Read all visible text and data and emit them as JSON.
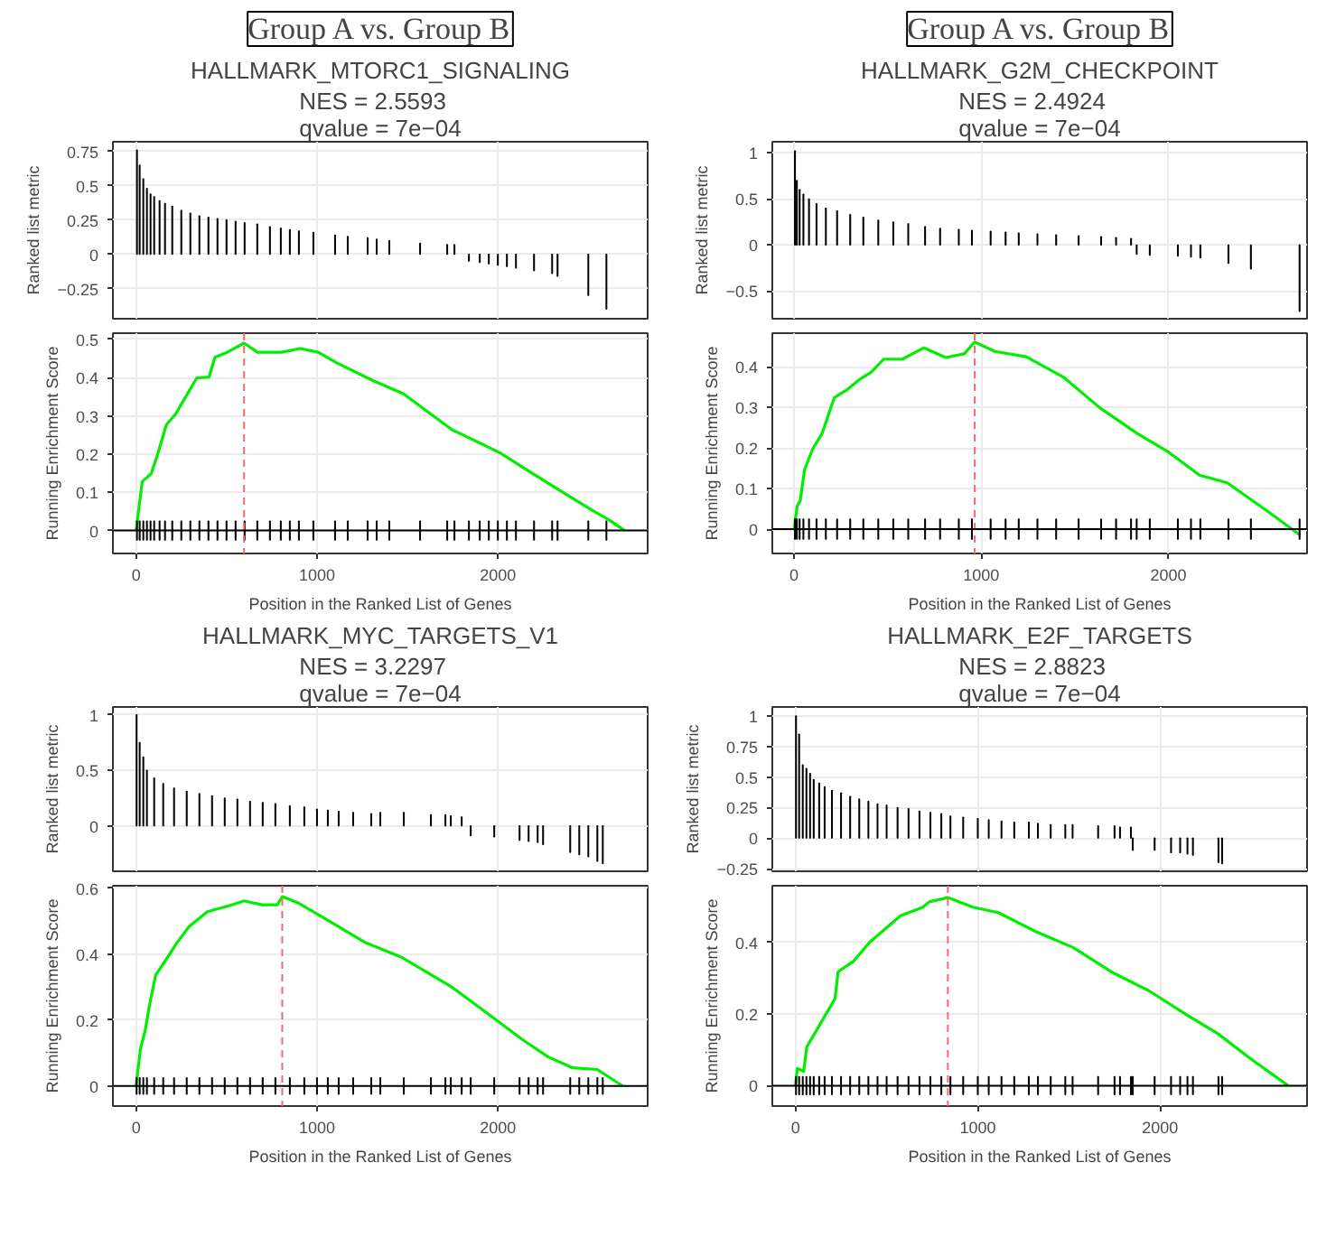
{
  "chart_data": [
    {
      "type": "bar",
      "annotations": [
        "Group A vs. Group B"
      ],
      "title": "HALLMARK_MTORC1_SIGNALING",
      "subtitle": "NES = 2.5593\nqvalue = 7e−04",
      "ylabel": "Ranked list metric",
      "color": "#000000",
      "xlim": [
        -128,
        2828
      ],
      "xticks": [
        0,
        1000,
        2000
      ],
      "ylim": [
        -0.47,
        0.82
      ],
      "yticks": [
        -0.25,
        0.0,
        0.25,
        0.5,
        0.75
      ],
      "tick_labels": "y",
      "grid": true,
      "x": [
        5,
        20,
        40,
        60,
        80,
        100,
        130,
        160,
        200,
        250,
        300,
        350,
        400,
        450,
        500,
        550,
        600,
        670,
        740,
        800,
        850,
        900,
        980,
        1100,
        1170,
        1280,
        1330,
        1400,
        1570,
        1720,
        1760,
        1840,
        1900,
        1950,
        2000,
        2050,
        2100,
        2200,
        2300,
        2330,
        2500,
        2600
      ],
      "values": [
        0.76,
        0.65,
        0.55,
        0.48,
        0.44,
        0.42,
        0.39,
        0.37,
        0.35,
        0.32,
        0.3,
        0.28,
        0.27,
        0.26,
        0.25,
        0.24,
        0.23,
        0.22,
        0.2,
        0.19,
        0.18,
        0.17,
        0.16,
        0.14,
        0.13,
        0.12,
        0.11,
        0.1,
        0.08,
        0.07,
        0.07,
        -0.05,
        -0.06,
        -0.07,
        -0.08,
        -0.09,
        -0.1,
        -0.12,
        -0.14,
        -0.16,
        -0.3,
        -0.4
      ]
    },
    {
      "type": "line",
      "xlabel": "Position in the Ranked List of Genes",
      "ylabel": "Running Enrichment Score",
      "xlim": [
        -128,
        2828
      ],
      "xticks": [
        0,
        1000,
        2000
      ],
      "ylim": [
        -0.06,
        0.516
      ],
      "yticks": [
        0.0,
        0.1,
        0.2,
        0.3,
        0.4,
        0.5
      ],
      "grid": true,
      "ref_lines": [
        {
          "axis": "x",
          "value": 597,
          "color": "#ff6666",
          "line_style": "dashed"
        },
        {
          "axis": "y",
          "value": 0,
          "color": "#000000",
          "line_style": "solid"
        }
      ],
      "series": [
        {
          "type": "line",
          "color": "#00ee00",
          "x": [
            0,
            34,
            84,
            117,
            168,
            218,
            285,
            336,
            403,
            436,
            503,
            597,
            671,
            805,
            906,
            1007,
            1107,
            1309,
            1477,
            1745,
            2013,
            2148,
            2332,
            2517,
            2617,
            2701
          ],
          "values": [
            0,
            0.128,
            0.149,
            0.196,
            0.277,
            0.304,
            0.358,
            0.399,
            0.401,
            0.453,
            0.466,
            0.49,
            0.466,
            0.466,
            0.476,
            0.466,
            0.439,
            0.392,
            0.358,
            0.264,
            0.203,
            0.162,
            0.108,
            0.054,
            0.027,
            0.0
          ]
        },
        {
          "type": "bar",
          "color": "#000000",
          "x": [
            5,
            20,
            40,
            60,
            80,
            100,
            130,
            160,
            200,
            250,
            300,
            350,
            400,
            450,
            500,
            550,
            600,
            670,
            740,
            800,
            850,
            900,
            980,
            1100,
            1170,
            1280,
            1330,
            1400,
            1570,
            1720,
            1760,
            1840,
            1900,
            1950,
            2000,
            2050,
            2100,
            2200,
            2300,
            2330,
            2500,
            2600
          ],
          "base": [
            -0.025,
            -0.025,
            -0.025,
            -0.025,
            -0.025,
            -0.025,
            -0.025,
            -0.025,
            -0.025,
            -0.025,
            -0.025,
            -0.025,
            -0.025,
            -0.025,
            -0.025,
            -0.025,
            -0.025,
            -0.025,
            -0.025,
            -0.025,
            -0.025,
            -0.025,
            -0.025,
            -0.025,
            -0.025,
            -0.025,
            -0.025,
            -0.025,
            -0.025,
            -0.025,
            -0.025,
            -0.025,
            -0.025,
            -0.025,
            -0.025,
            -0.025,
            -0.025,
            -0.025,
            -0.025,
            -0.025,
            -0.025,
            -0.025
          ],
          "values": [
            0.05,
            0.05,
            0.05,
            0.05,
            0.05,
            0.05,
            0.05,
            0.05,
            0.05,
            0.05,
            0.05,
            0.05,
            0.05,
            0.05,
            0.05,
            0.05,
            0.05,
            0.05,
            0.05,
            0.05,
            0.05,
            0.05,
            0.05,
            0.05,
            0.05,
            0.05,
            0.05,
            0.05,
            0.05,
            0.05,
            0.05,
            0.05,
            0.05,
            0.05,
            0.05,
            0.05,
            0.05,
            0.05,
            0.05,
            0.05,
            0.05,
            0.05
          ]
        }
      ]
    },
    {
      "type": "bar",
      "annotations": [
        "Group A vs. Group B"
      ],
      "title": "HALLMARK_G2M_CHECKPOINT",
      "subtitle": "NES = 2.4924\nqvalue = 7e−04",
      "ylabel": "Ranked list metric",
      "color": "#000000",
      "xlim": [
        -116,
        2740
      ],
      "xticks": [
        0,
        1000,
        2000
      ],
      "ylim": [
        -0.8,
        1.12
      ],
      "yticks": [
        -0.5,
        0.0,
        0.5,
        1.0
      ],
      "tick_labels": "y",
      "grid": true,
      "x": [
        5,
        15,
        30,
        50,
        80,
        120,
        170,
        230,
        300,
        370,
        450,
        530,
        610,
        700,
        780,
        880,
        950,
        1050,
        1130,
        1200,
        1300,
        1400,
        1520,
        1640,
        1720,
        1800,
        1830,
        1900,
        2050,
        2120,
        2170,
        2320,
        2440,
        2700
      ],
      "values": [
        1.02,
        0.7,
        0.6,
        0.55,
        0.5,
        0.45,
        0.4,
        0.37,
        0.33,
        0.3,
        0.27,
        0.25,
        0.23,
        0.2,
        0.18,
        0.17,
        0.16,
        0.15,
        0.14,
        0.13,
        0.12,
        0.11,
        0.1,
        0.09,
        0.08,
        0.07,
        -0.1,
        -0.11,
        -0.12,
        -0.13,
        -0.14,
        -0.2,
        -0.26,
        -0.72
      ]
    },
    {
      "type": "line",
      "xlabel": "Position in the Ranked List of Genes",
      "ylabel": "Running Enrichment Score",
      "xlim": [
        -116,
        2740
      ],
      "xticks": [
        0,
        1000,
        2000
      ],
      "ylim": [
        -0.06,
        0.483
      ],
      "yticks": [
        0.0,
        0.1,
        0.2,
        0.3,
        0.4
      ],
      "grid": true,
      "ref_lines": [
        {
          "axis": "x",
          "value": 965,
          "color": "#ff6666",
          "line_style": "dashed"
        },
        {
          "axis": "y",
          "value": 0,
          "color": "#000000",
          "line_style": "solid"
        }
      ],
      "series": [
        {
          "type": "line",
          "color": "#00ee00",
          "x": [
            0,
            17,
            33,
            56,
            99,
            149,
            215,
            281,
            347,
            413,
            479,
            579,
            694,
            810,
            909,
            965,
            1074,
            1240,
            1438,
            1636,
            1835,
            2000,
            2165,
            2314,
            2529,
            2704
          ],
          "values": [
            0,
            0.057,
            0.07,
            0.146,
            0.197,
            0.235,
            0.324,
            0.343,
            0.368,
            0.387,
            0.419,
            0.419,
            0.447,
            0.423,
            0.432,
            0.461,
            0.438,
            0.425,
            0.375,
            0.298,
            0.235,
            0.19,
            0.133,
            0.114,
            0.044,
            -0.015
          ]
        },
        {
          "type": "bar",
          "color": "#000000",
          "x": [
            5,
            15,
            30,
            50,
            80,
            120,
            170,
            230,
            300,
            370,
            450,
            530,
            610,
            700,
            780,
            880,
            950,
            1050,
            1130,
            1200,
            1300,
            1400,
            1520,
            1640,
            1720,
            1800,
            1830,
            1900,
            2050,
            2120,
            2170,
            2320,
            2440,
            2700
          ],
          "base": [
            -0.025,
            -0.025,
            -0.025,
            -0.025,
            -0.025,
            -0.025,
            -0.025,
            -0.025,
            -0.025,
            -0.025,
            -0.025,
            -0.025,
            -0.025,
            -0.025,
            -0.025,
            -0.025,
            -0.025,
            -0.025,
            -0.025,
            -0.025,
            -0.025,
            -0.025,
            -0.025,
            -0.025,
            -0.025,
            -0.025,
            -0.025,
            -0.025,
            -0.025,
            -0.025,
            -0.025,
            -0.025,
            -0.025,
            -0.025
          ],
          "values": [
            0.05,
            0.05,
            0.05,
            0.05,
            0.05,
            0.05,
            0.05,
            0.05,
            0.05,
            0.05,
            0.05,
            0.05,
            0.05,
            0.05,
            0.05,
            0.05,
            0.05,
            0.05,
            0.05,
            0.05,
            0.05,
            0.05,
            0.05,
            0.05,
            0.05,
            0.05,
            0.05,
            0.05,
            0.05,
            0.05,
            0.05,
            0.05,
            0.05,
            0.05
          ]
        }
      ]
    },
    {
      "type": "bar",
      "title": "HALLMARK_MYC_TARGETS_V1",
      "subtitle": "NES = 3.2297\nqvalue = 7e−04",
      "ylabel": "Ranked list metric",
      "color": "#000000",
      "xlim": [
        -128,
        2828
      ],
      "xticks": [
        0,
        1000,
        2000
      ],
      "ylim": [
        -0.41,
        1.07
      ],
      "yticks": [
        0.0,
        0.5,
        1.0
      ],
      "tick_labels": "y",
      "grid": true,
      "x": [
        3,
        20,
        40,
        60,
        100,
        150,
        210,
        280,
        350,
        420,
        490,
        560,
        630,
        700,
        770,
        850,
        930,
        1000,
        1060,
        1120,
        1200,
        1300,
        1350,
        1480,
        1630,
        1710,
        1740,
        1800,
        1850,
        1980,
        2120,
        2170,
        2220,
        2250,
        2400,
        2450,
        2500,
        2550,
        2580
      ],
      "values": [
        1.0,
        0.75,
        0.62,
        0.5,
        0.43,
        0.38,
        0.34,
        0.31,
        0.29,
        0.27,
        0.25,
        0.24,
        0.22,
        0.21,
        0.2,
        0.18,
        0.17,
        0.15,
        0.14,
        0.13,
        0.12,
        0.11,
        0.12,
        0.12,
        0.1,
        0.1,
        0.09,
        0.08,
        -0.09,
        -0.1,
        -0.13,
        -0.14,
        -0.15,
        -0.17,
        -0.24,
        -0.26,
        -0.28,
        -0.32,
        -0.34
      ]
    },
    {
      "type": "line",
      "xlabel": "Position in the Ranked List of Genes",
      "ylabel": "Running Enrichment Score",
      "xlim": [
        -128,
        2828
      ],
      "xticks": [
        0,
        1000,
        2000
      ],
      "ylim": [
        -0.061,
        0.608
      ],
      "yticks": [
        0.0,
        0.2,
        0.4,
        0.6
      ],
      "grid": true,
      "ref_lines": [
        {
          "axis": "x",
          "value": 808,
          "color": "#ff6666",
          "line_style": "dashed"
        },
        {
          "axis": "y",
          "value": 0,
          "color": "#000000",
          "line_style": "solid"
        }
      ],
      "series": [
        {
          "type": "line",
          "color": "#00ee00",
          "x": [
            0,
            24,
            51,
            74,
            108,
            158,
            226,
            293,
            394,
            529,
            596,
            697,
            781,
            808,
            899,
            1067,
            1269,
            1471,
            1741,
            1943,
            2145,
            2279,
            2414,
            2549,
            2690
          ],
          "values": [
            0,
            0.112,
            0.17,
            0.245,
            0.336,
            0.377,
            0.435,
            0.484,
            0.529,
            0.55,
            0.562,
            0.55,
            0.55,
            0.575,
            0.555,
            0.501,
            0.435,
            0.39,
            0.302,
            0.22,
            0.137,
            0.088,
            0.055,
            0.05,
            0.0
          ]
        },
        {
          "type": "bar",
          "color": "#000000",
          "x": [
            3,
            20,
            40,
            60,
            100,
            150,
            210,
            280,
            350,
            420,
            490,
            560,
            630,
            700,
            770,
            850,
            930,
            1000,
            1060,
            1120,
            1200,
            1300,
            1350,
            1480,
            1630,
            1710,
            1740,
            1800,
            1850,
            1980,
            2120,
            2170,
            2220,
            2250,
            2400,
            2450,
            2500,
            2550,
            2580
          ],
          "base": [
            -0.025,
            -0.025,
            -0.025,
            -0.025,
            -0.025,
            -0.025,
            -0.025,
            -0.025,
            -0.025,
            -0.025,
            -0.025,
            -0.025,
            -0.025,
            -0.025,
            -0.025,
            -0.025,
            -0.025,
            -0.025,
            -0.025,
            -0.025,
            -0.025,
            -0.025,
            -0.025,
            -0.025,
            -0.025,
            -0.025,
            -0.025,
            -0.025,
            -0.025,
            -0.025,
            -0.025,
            -0.025,
            -0.025,
            -0.025,
            -0.025,
            -0.025,
            -0.025,
            -0.025,
            -0.025
          ],
          "values": [
            0.05,
            0.05,
            0.05,
            0.05,
            0.05,
            0.05,
            0.05,
            0.05,
            0.05,
            0.05,
            0.05,
            0.05,
            0.05,
            0.05,
            0.05,
            0.05,
            0.05,
            0.05,
            0.05,
            0.05,
            0.05,
            0.05,
            0.05,
            0.05,
            0.05,
            0.05,
            0.05,
            0.05,
            0.05,
            0.05,
            0.05,
            0.05,
            0.05,
            0.05,
            0.05,
            0.05,
            0.05,
            0.05,
            0.05
          ]
        }
      ]
    },
    {
      "type": "bar",
      "title": "HALLMARK_E2F_TARGETS",
      "subtitle": "NES = 2.8823\nqvalue = 7e−04",
      "ylabel": "Ranked list metric",
      "color": "#000000",
      "xlim": [
        -127,
        2806
      ],
      "xticks": [
        0,
        1000,
        2000
      ],
      "ylim": [
        -0.272,
        1.073
      ],
      "yticks": [
        -0.25,
        0.0,
        0.25,
        0.5,
        0.75,
        1.0
      ],
      "tick_labels": "y",
      "grid": true,
      "x": [
        3,
        20,
        40,
        60,
        80,
        100,
        130,
        160,
        200,
        250,
        300,
        350,
        400,
        450,
        500,
        560,
        620,
        680,
        740,
        800,
        850,
        920,
        1000,
        1060,
        1130,
        1200,
        1280,
        1330,
        1400,
        1480,
        1520,
        1660,
        1750,
        1780,
        1840,
        1850,
        1970,
        2060,
        2110,
        2150,
        2180,
        2320,
        2340
      ],
      "values": [
        1.0,
        0.85,
        0.6,
        0.57,
        0.53,
        0.48,
        0.45,
        0.42,
        0.39,
        0.37,
        0.34,
        0.32,
        0.3,
        0.28,
        0.27,
        0.25,
        0.24,
        0.22,
        0.21,
        0.2,
        0.18,
        0.17,
        0.16,
        0.15,
        0.14,
        0.13,
        0.13,
        0.12,
        0.11,
        0.11,
        0.11,
        0.1,
        0.1,
        0.09,
        0.09,
        -0.1,
        -0.1,
        -0.12,
        -0.12,
        -0.13,
        -0.14,
        -0.2,
        -0.21
      ]
    },
    {
      "type": "line",
      "xlabel": "Position in the Ranked List of Genes",
      "ylabel": "Running Enrichment Score",
      "xlim": [
        -127,
        2806
      ],
      "xticks": [
        0,
        1000,
        2000
      ],
      "ylim": [
        -0.057,
        0.558
      ],
      "yticks": [
        0.0,
        0.2,
        0.4
      ],
      "grid": true,
      "ref_lines": [
        {
          "axis": "x",
          "value": 836,
          "color": "#ff6666",
          "line_style": "dashed"
        },
        {
          "axis": "y",
          "value": 0,
          "color": "#000000",
          "line_style": "solid"
        }
      ],
      "series": [
        {
          "type": "line",
          "color": "#00ee00",
          "x": [
            0,
            10,
            45,
            62,
            114,
            165,
            217,
            234,
            320,
            406,
            510,
            578,
            699,
            733,
            836,
            974,
            1112,
            1318,
            1525,
            1731,
            1938,
            2145,
            2317,
            2489,
            2702
          ],
          "values": [
            0,
            0.048,
            0.04,
            0.108,
            0.153,
            0.198,
            0.243,
            0.318,
            0.348,
            0.4,
            0.445,
            0.475,
            0.498,
            0.513,
            0.525,
            0.498,
            0.483,
            0.43,
            0.385,
            0.318,
            0.265,
            0.198,
            0.145,
            0.078,
            0.0
          ]
        },
        {
          "type": "bar",
          "color": "#000000",
          "x": [
            3,
            20,
            40,
            60,
            80,
            100,
            130,
            160,
            200,
            250,
            300,
            350,
            400,
            450,
            500,
            560,
            620,
            680,
            740,
            800,
            850,
            920,
            1000,
            1060,
            1130,
            1200,
            1280,
            1330,
            1400,
            1480,
            1520,
            1660,
            1750,
            1780,
            1840,
            1850,
            1970,
            2060,
            2110,
            2150,
            2180,
            2320,
            2340
          ],
          "base": [
            -0.025,
            -0.025,
            -0.025,
            -0.025,
            -0.025,
            -0.025,
            -0.025,
            -0.025,
            -0.025,
            -0.025,
            -0.025,
            -0.025,
            -0.025,
            -0.025,
            -0.025,
            -0.025,
            -0.025,
            -0.025,
            -0.025,
            -0.025,
            -0.025,
            -0.025,
            -0.025,
            -0.025,
            -0.025,
            -0.025,
            -0.025,
            -0.025,
            -0.025,
            -0.025,
            -0.025,
            -0.025,
            -0.025,
            -0.025,
            -0.025,
            -0.025,
            -0.025,
            -0.025,
            -0.025,
            -0.025,
            -0.025,
            -0.025,
            -0.025
          ],
          "values": [
            0.05,
            0.05,
            0.05,
            0.05,
            0.05,
            0.05,
            0.05,
            0.05,
            0.05,
            0.05,
            0.05,
            0.05,
            0.05,
            0.05,
            0.05,
            0.05,
            0.05,
            0.05,
            0.05,
            0.05,
            0.05,
            0.05,
            0.05,
            0.05,
            0.05,
            0.05,
            0.05,
            0.05,
            0.05,
            0.05,
            0.05,
            0.05,
            0.05,
            0.05,
            0.05,
            0.05,
            0.05,
            0.05,
            0.05,
            0.05,
            0.05,
            0.05,
            0.05
          ]
        }
      ]
    }
  ]
}
